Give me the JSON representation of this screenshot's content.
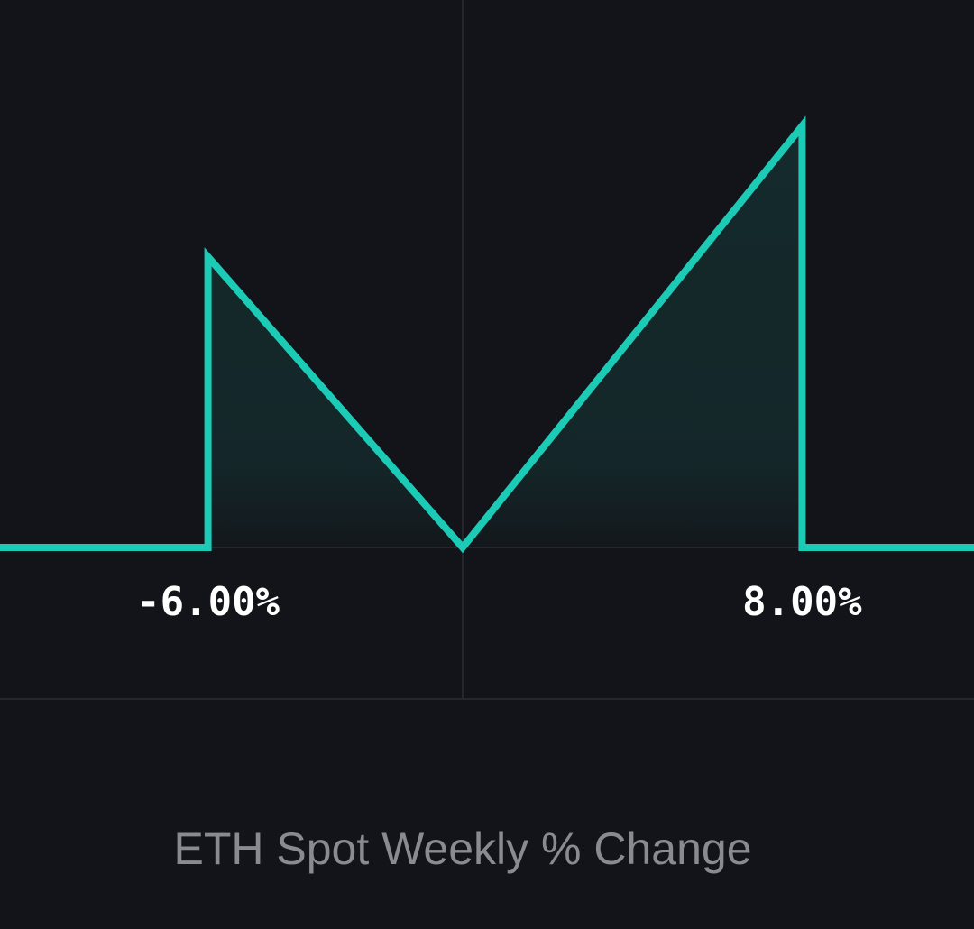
{
  "chart_data": {
    "type": "line",
    "x_title": "ETH Spot Weekly % Change",
    "series": [
      {
        "color": "#1ccbb6",
        "x": [
          -10.9,
          -6,
          -6,
          0,
          8,
          8,
          12.05
        ],
        "values": [
          0,
          0,
          6,
          0,
          8.7,
          0,
          0
        ]
      }
    ],
    "xlim": [
      -10.9,
      12.05
    ],
    "ylim": [
      0,
      11.3
    ],
    "xticks": [
      {
        "value": -6,
        "label": "-6.00%"
      },
      {
        "value": 8,
        "label": "8.00%"
      }
    ],
    "reference_x": 0,
    "fill": true
  }
}
